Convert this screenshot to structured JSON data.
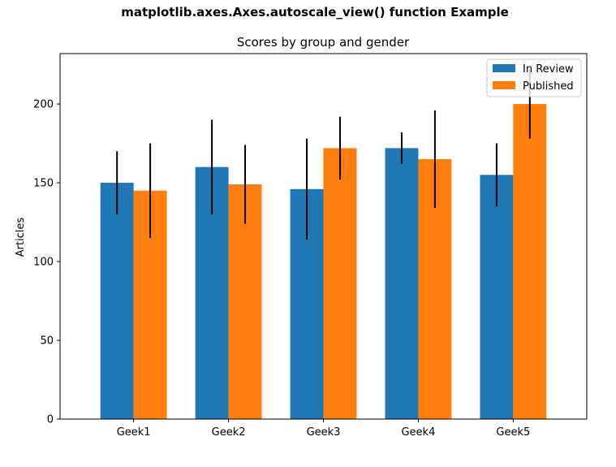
{
  "figure": {
    "suptitle": "matplotlib.axes.Axes.autoscale_view() function Example"
  },
  "chart_data": {
    "type": "bar",
    "title": "Scores by group and gender",
    "xlabel": "",
    "ylabel": "Articles",
    "categories": [
      "Geek1",
      "Geek2",
      "Geek3",
      "Geek4",
      "Geek5"
    ],
    "series": [
      {
        "name": "In Review",
        "color": "#1f77b4",
        "values": [
          150,
          160,
          146,
          172,
          155
        ],
        "errors": [
          20,
          30,
          32,
          10,
          20
        ]
      },
      {
        "name": "Published",
        "color": "#ff7f0e",
        "values": [
          145,
          149,
          172,
          165,
          200
        ],
        "errors": [
          30,
          25,
          20,
          31,
          22
        ]
      }
    ],
    "ylim": [
      0,
      232
    ],
    "yticks": [
      0,
      50,
      100,
      150,
      200
    ],
    "grid": false,
    "legend_position": "top-right"
  }
}
